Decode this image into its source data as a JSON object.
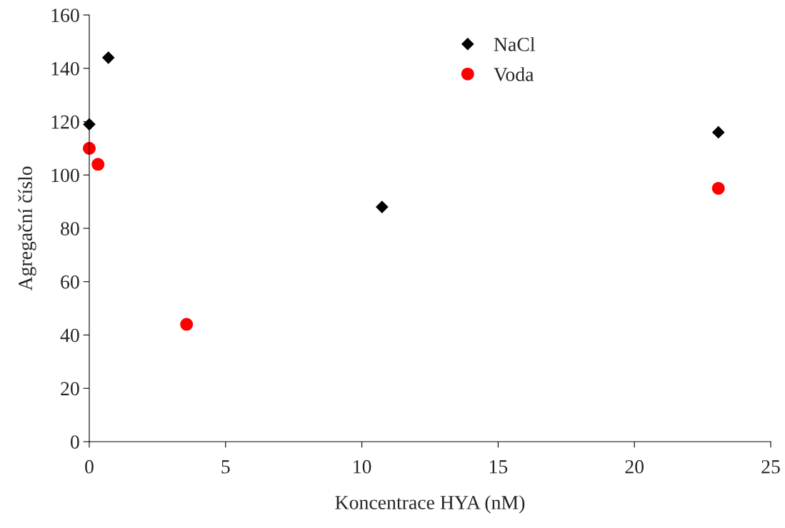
{
  "chart_data": {
    "type": "scatter",
    "xlabel": "Koncentrace HYA (nM)",
    "ylabel": "Agregační číslo",
    "series": [
      {
        "name": "NaCl",
        "color": "#000000",
        "marker": "diamond",
        "x": [
          0,
          0.7,
          10.74,
          23.08
        ],
        "values": [
          119,
          144,
          88,
          116
        ]
      },
      {
        "name": "Voda",
        "color": "#ff0000",
        "marker": "circle",
        "x": [
          0,
          0.32,
          3.57,
          23.08
        ],
        "values": [
          110,
          104,
          44,
          95
        ]
      }
    ],
    "xlim": [
      0,
      25
    ],
    "xticks": [
      0,
      5,
      10,
      15,
      20,
      25
    ],
    "ylim": [
      0,
      160
    ],
    "yticks": [
      0,
      20,
      40,
      60,
      80,
      100,
      120,
      140,
      160
    ],
    "grid": false,
    "legend": "top"
  }
}
